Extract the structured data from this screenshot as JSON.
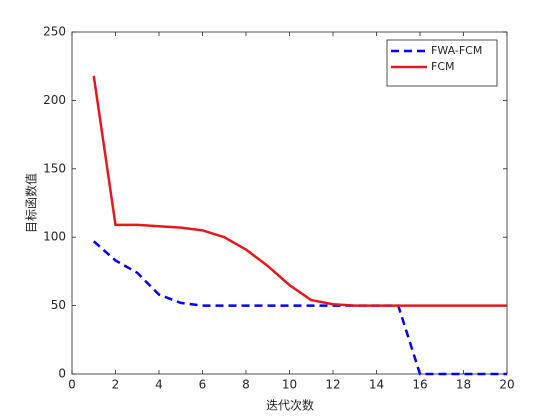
{
  "chart_data": {
    "type": "line",
    "x": [
      1,
      2,
      3,
      4,
      5,
      6,
      7,
      8,
      9,
      10,
      11,
      12,
      13,
      14,
      15,
      16,
      17,
      18,
      19,
      20
    ],
    "series": [
      {
        "name": "FWA-FCM",
        "color": "#0000ff",
        "dashed": true,
        "values": [
          97,
          83,
          74,
          58,
          52,
          50,
          50,
          50,
          50,
          50,
          50,
          50,
          50,
          50,
          50,
          0,
          0,
          0,
          0,
          0
        ]
      },
      {
        "name": "FCM",
        "color": "#e31a1c",
        "dashed": false,
        "values": [
          218,
          109,
          109,
          108,
          107,
          105,
          100,
          91,
          79,
          65,
          54,
          51,
          50,
          50,
          50,
          50,
          50,
          50,
          50,
          50
        ]
      }
    ],
    "xlabel": "迭代次数",
    "ylabel": "目标函数值",
    "xlim": [
      0,
      20
    ],
    "xticks": [
      0,
      2,
      4,
      6,
      8,
      10,
      12,
      14,
      16,
      18,
      20
    ],
    "ylim": [
      0,
      250
    ],
    "yticks": [
      0,
      50,
      100,
      150,
      200,
      250
    ],
    "legend": "upper right"
  }
}
